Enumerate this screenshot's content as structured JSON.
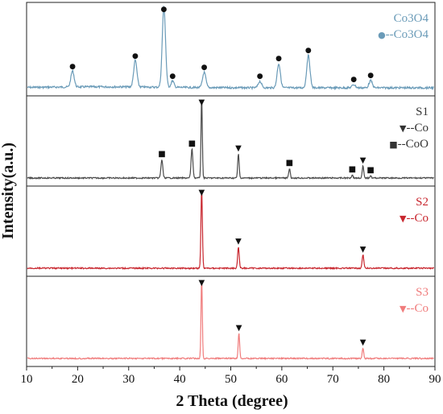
{
  "chart_data": {
    "type": "line",
    "xlabel": "2 Theta (degree)",
    "ylabel": "Intensity(a.u.)",
    "xlim": [
      10,
      90
    ],
    "x_ticks": [
      10,
      20,
      30,
      40,
      50,
      60,
      70,
      80,
      90
    ],
    "y_ticks_shown": false,
    "grid": false,
    "panels": [
      {
        "label": "Co3O4",
        "color": "#6a9bb8",
        "legend": [
          {
            "marker": "",
            "text": "Co3O4"
          },
          {
            "marker": "●",
            "text": "--Co3O4"
          }
        ],
        "peaks": [
          {
            "x": 19.0,
            "h": 0.2,
            "w": 0.45
          },
          {
            "x": 31.3,
            "h": 0.33,
            "w": 0.45
          },
          {
            "x": 36.9,
            "h": 1.0,
            "w": 0.45
          },
          {
            "x": 38.6,
            "h": 0.08,
            "w": 0.4
          },
          {
            "x": 44.8,
            "h": 0.19,
            "w": 0.45
          },
          {
            "x": 55.7,
            "h": 0.08,
            "w": 0.45
          },
          {
            "x": 59.4,
            "h": 0.3,
            "w": 0.45
          },
          {
            "x": 65.2,
            "h": 0.4,
            "w": 0.45
          },
          {
            "x": 74.1,
            "h": 0.04,
            "w": 0.45
          },
          {
            "x": 77.4,
            "h": 0.09,
            "w": 0.45
          }
        ],
        "markers": [
          {
            "x": 19.0,
            "symbol": "●"
          },
          {
            "x": 31.3,
            "symbol": "●"
          },
          {
            "x": 36.9,
            "symbol": "●"
          },
          {
            "x": 38.6,
            "symbol": "●"
          },
          {
            "x": 44.8,
            "symbol": "●"
          },
          {
            "x": 55.7,
            "symbol": "●"
          },
          {
            "x": 59.4,
            "symbol": "●"
          },
          {
            "x": 65.2,
            "symbol": "●"
          },
          {
            "x": 74.1,
            "symbol": "●"
          },
          {
            "x": 77.4,
            "symbol": "●"
          }
        ]
      },
      {
        "label": "S1",
        "color": "#4a4a4a",
        "legend": [
          {
            "marker": "",
            "text": "S1"
          },
          {
            "marker": "▼",
            "text": "--Co"
          },
          {
            "marker": "■",
            "text": "--CoO"
          }
        ],
        "peaks": [
          {
            "x": 36.5,
            "h": 0.23,
            "w": 0.25
          },
          {
            "x": 42.4,
            "h": 0.36,
            "w": 0.25
          },
          {
            "x": 44.3,
            "h": 1.0,
            "w": 0.18
          },
          {
            "x": 51.5,
            "h": 0.3,
            "w": 0.2
          },
          {
            "x": 61.5,
            "h": 0.12,
            "w": 0.2
          },
          {
            "x": 73.8,
            "h": 0.04,
            "w": 0.2
          },
          {
            "x": 75.9,
            "h": 0.15,
            "w": 0.2
          },
          {
            "x": 77.4,
            "h": 0.03,
            "w": 0.2
          }
        ],
        "markers": [
          {
            "x": 44.3,
            "symbol": "▼"
          },
          {
            "x": 51.5,
            "symbol": "▼"
          },
          {
            "x": 75.9,
            "symbol": "▼"
          },
          {
            "x": 36.5,
            "symbol": "■"
          },
          {
            "x": 42.4,
            "symbol": "■"
          },
          {
            "x": 61.5,
            "symbol": "■"
          },
          {
            "x": 73.8,
            "symbol": "■"
          },
          {
            "x": 77.4,
            "symbol": "■"
          }
        ]
      },
      {
        "label": "S2",
        "color": "#c8262e",
        "legend": [
          {
            "marker": "",
            "text": "S2"
          },
          {
            "marker": "▼",
            "text": "--Co"
          }
        ],
        "peaks": [
          {
            "x": 44.3,
            "h": 1.0,
            "w": 0.2
          },
          {
            "x": 51.5,
            "h": 0.27,
            "w": 0.22
          },
          {
            "x": 75.9,
            "h": 0.17,
            "w": 0.22
          }
        ],
        "markers": [
          {
            "x": 44.3,
            "symbol": "▼"
          },
          {
            "x": 51.5,
            "symbol": "▼"
          },
          {
            "x": 75.9,
            "symbol": "▼"
          }
        ]
      },
      {
        "label": "S3",
        "color": "#f07c7c",
        "legend": [
          {
            "marker": "",
            "text": "S3"
          },
          {
            "marker": "▼",
            "text": "--Co"
          }
        ],
        "peaks": [
          {
            "x": 44.3,
            "h": 1.0,
            "w": 0.18
          },
          {
            "x": 51.6,
            "h": 0.31,
            "w": 0.2
          },
          {
            "x": 75.9,
            "h": 0.13,
            "w": 0.2
          }
        ],
        "markers": [
          {
            "x": 44.3,
            "symbol": "▼"
          },
          {
            "x": 51.6,
            "symbol": "▼"
          },
          {
            "x": 75.9,
            "symbol": "▼"
          }
        ]
      }
    ]
  }
}
